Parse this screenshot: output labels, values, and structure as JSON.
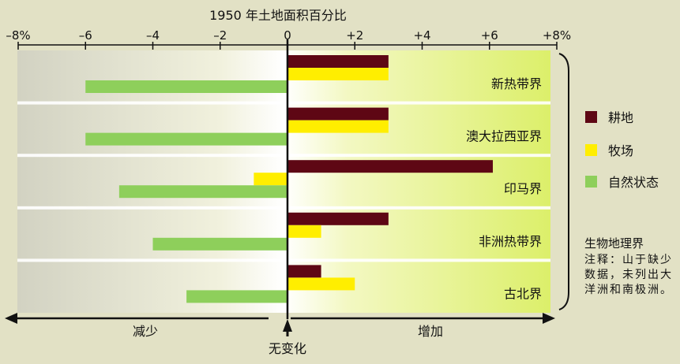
{
  "chart_data": {
    "type": "bar",
    "orientation": "horizontal",
    "title": "1950 年土地面积百分比",
    "xlim": [
      -8,
      8
    ],
    "x_ticks": [
      {
        "value": -8,
        "label": "–8%"
      },
      {
        "value": -6,
        "label": "–6"
      },
      {
        "value": -4,
        "label": "–4"
      },
      {
        "value": -2,
        "label": "–2"
      },
      {
        "value": 0,
        "label": "0"
      },
      {
        "value": 2,
        "label": "+2"
      },
      {
        "value": 4,
        "label": "+4"
      },
      {
        "value": 6,
        "label": "+6"
      },
      {
        "value": 8,
        "label": "+8%"
      }
    ],
    "categories": [
      "新热带界",
      "澳大拉西亚界",
      "印马界",
      "非洲热带界",
      "古北界"
    ],
    "series": [
      {
        "name": "耕地",
        "color": "#5e0714",
        "values": [
          3.0,
          3.0,
          6.1,
          3.0,
          1.0
        ]
      },
      {
        "name": "牧场",
        "color": "#ffee00",
        "values": [
          3.0,
          3.0,
          -1.0,
          1.0,
          2.0
        ]
      },
      {
        "name": "自然状态",
        "color": "#8ecf5b",
        "values": [
          -6.0,
          -6.0,
          -5.0,
          -4.0,
          -3.0
        ]
      }
    ],
    "bottom_labels": {
      "left": "减少",
      "center": "无变化",
      "right": "增加"
    },
    "legend_position": "right"
  },
  "note": {
    "title": "生物地理界",
    "body": "注释：山于缺少数据，未列出大洋洲和南极洲。"
  }
}
